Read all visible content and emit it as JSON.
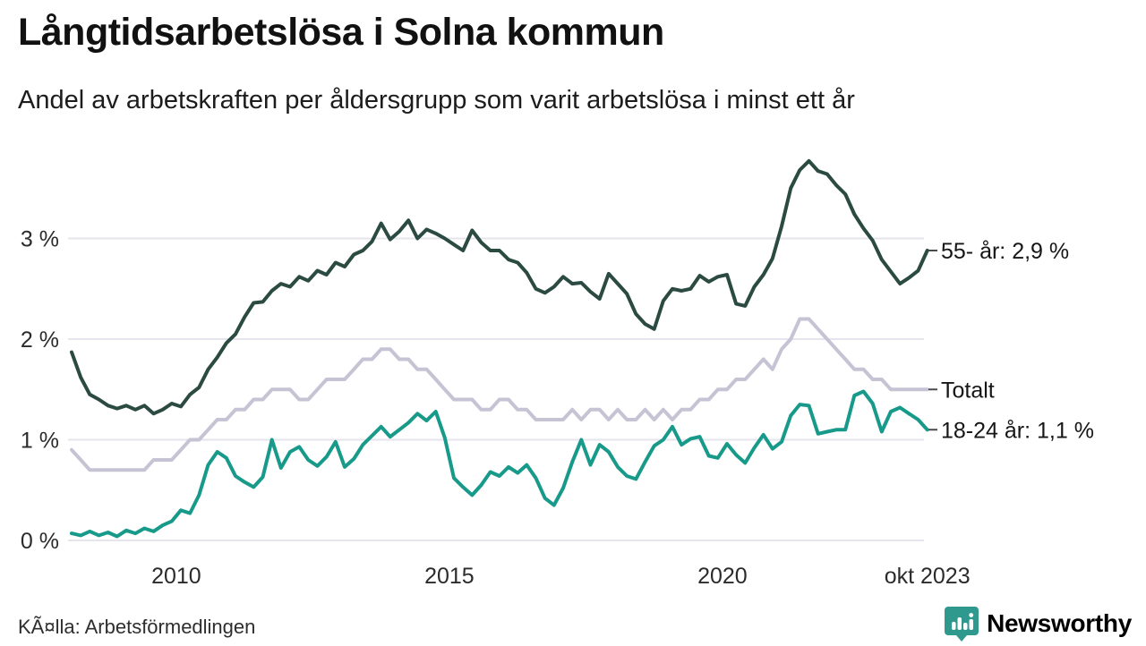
{
  "header": {
    "title": "Långtidsarbetslösa i Solna kommun",
    "subtitle": "Andel av arbetskraften per åldersgrupp som varit arbetslösa i minst ett år"
  },
  "footer": {
    "source": "KÃ¤lla: Arbetsförmedlingen",
    "brand": "Newsworthy"
  },
  "chart_data": {
    "type": "line",
    "title": "Långtidsarbetslösa i Solna kommun",
    "subtitle": "Andel av arbetskraften per åldersgrupp som varit arbetslösa i minst ett år",
    "x_start": 2008.0833,
    "x_step_years": 0.166667,
    "xlim": [
      2008.08,
      2023.79
    ],
    "ylim": [
      0,
      3.85
    ],
    "grid": true,
    "legend_position": "right-end-labels",
    "colors": {
      "line_55": "#2b4a41",
      "line_total": "#c6c3d4",
      "line_1824": "#189a8a",
      "grid": "#e6e4ec",
      "axis_text": "#2b2b2b",
      "end_label_text": "#161616",
      "brand_teal": "#2f968c"
    },
    "y_ticks": [
      {
        "value": 0,
        "label": "0 %"
      },
      {
        "value": 1,
        "label": "1 %"
      },
      {
        "value": 2,
        "label": "2 %"
      },
      {
        "value": 3,
        "label": "3 %"
      }
    ],
    "x_ticks": [
      {
        "t": 2010,
        "label": "2010"
      },
      {
        "t": 2015,
        "label": "2015"
      },
      {
        "t": 2020,
        "label": "2020"
      },
      {
        "t": 2023.75,
        "label": "okt 2023"
      }
    ],
    "series": [
      {
        "id": "55-ar",
        "name": "55- år",
        "end_label": "55- år: 2,9 %",
        "end_value_label": "2,9 %",
        "color": "#2b4a41",
        "z": 2,
        "values": [
          1.87,
          1.62,
          1.45,
          1.4,
          1.34,
          1.31,
          1.34,
          1.3,
          1.34,
          1.26,
          1.3,
          1.36,
          1.33,
          1.45,
          1.52,
          1.7,
          1.82,
          1.96,
          2.05,
          2.22,
          2.36,
          2.37,
          2.48,
          2.55,
          2.52,
          2.62,
          2.58,
          2.68,
          2.64,
          2.76,
          2.72,
          2.84,
          2.88,
          2.97,
          3.15,
          2.99,
          3.07,
          3.18,
          3.0,
          3.09,
          3.05,
          3.0,
          2.94,
          2.88,
          3.08,
          2.96,
          2.88,
          2.88,
          2.79,
          2.76,
          2.66,
          2.5,
          2.46,
          2.52,
          2.62,
          2.55,
          2.56,
          2.47,
          2.4,
          2.65,
          2.55,
          2.45,
          2.25,
          2.15,
          2.1,
          2.38,
          2.5,
          2.48,
          2.5,
          2.63,
          2.57,
          2.62,
          2.64,
          2.35,
          2.33,
          2.52,
          2.64,
          2.8,
          3.12,
          3.5,
          3.68,
          3.77,
          3.67,
          3.64,
          3.53,
          3.44,
          3.24,
          3.1,
          2.98,
          2.79,
          2.67,
          2.55,
          2.61,
          2.68,
          2.88
        ]
      },
      {
        "id": "totalt",
        "name": "Totalt",
        "end_label": "Totalt",
        "end_value_label": "",
        "color": "#c6c3d4",
        "z": 1,
        "values": [
          0.9,
          0.8,
          0.7,
          0.7,
          0.7,
          0.7,
          0.7,
          0.7,
          0.7,
          0.8,
          0.8,
          0.8,
          0.9,
          1.0,
          1.0,
          1.1,
          1.2,
          1.2,
          1.3,
          1.3,
          1.4,
          1.4,
          1.5,
          1.5,
          1.5,
          1.4,
          1.4,
          1.5,
          1.6,
          1.6,
          1.6,
          1.7,
          1.8,
          1.8,
          1.9,
          1.9,
          1.8,
          1.8,
          1.7,
          1.7,
          1.6,
          1.5,
          1.4,
          1.4,
          1.4,
          1.3,
          1.3,
          1.4,
          1.4,
          1.3,
          1.3,
          1.2,
          1.2,
          1.2,
          1.2,
          1.3,
          1.2,
          1.3,
          1.3,
          1.2,
          1.3,
          1.2,
          1.2,
          1.3,
          1.2,
          1.3,
          1.2,
          1.3,
          1.3,
          1.4,
          1.4,
          1.5,
          1.5,
          1.6,
          1.6,
          1.7,
          1.8,
          1.7,
          1.9,
          2.0,
          2.2,
          2.2,
          2.1,
          2.0,
          1.9,
          1.8,
          1.7,
          1.7,
          1.6,
          1.6,
          1.5,
          1.5,
          1.5,
          1.5,
          1.5
        ]
      },
      {
        "id": "18-24-ar",
        "name": "18-24 år",
        "end_label": "18-24 år: 1,1 %",
        "end_value_label": "1,1 %",
        "color": "#189a8a",
        "z": 3,
        "values": [
          0.07,
          0.05,
          0.09,
          0.05,
          0.08,
          0.04,
          0.1,
          0.07,
          0.12,
          0.09,
          0.15,
          0.19,
          0.3,
          0.27,
          0.45,
          0.75,
          0.88,
          0.82,
          0.64,
          0.58,
          0.53,
          0.63,
          1.0,
          0.72,
          0.88,
          0.93,
          0.8,
          0.74,
          0.83,
          0.98,
          0.73,
          0.81,
          0.95,
          1.04,
          1.13,
          1.03,
          1.1,
          1.17,
          1.26,
          1.19,
          1.28,
          1.02,
          0.62,
          0.53,
          0.45,
          0.55,
          0.68,
          0.64,
          0.73,
          0.67,
          0.75,
          0.62,
          0.42,
          0.35,
          0.52,
          0.78,
          1.0,
          0.75,
          0.95,
          0.88,
          0.73,
          0.64,
          0.61,
          0.78,
          0.94,
          1.0,
          1.13,
          0.95,
          1.01,
          1.03,
          0.84,
          0.82,
          0.96,
          0.85,
          0.77,
          0.92,
          1.05,
          0.91,
          0.98,
          1.24,
          1.35,
          1.34,
          1.06,
          1.08,
          1.1,
          1.1,
          1.44,
          1.48,
          1.36,
          1.08,
          1.28,
          1.32,
          1.26,
          1.2,
          1.1
        ]
      }
    ]
  }
}
